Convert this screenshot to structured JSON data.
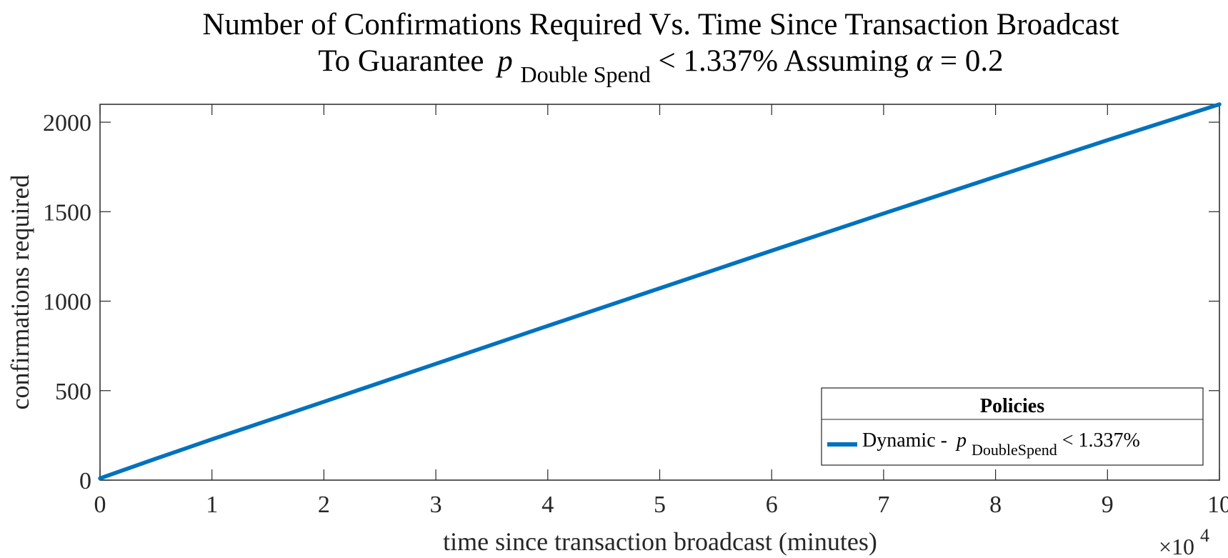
{
  "chart_data": {
    "type": "line",
    "title": {
      "line1": "Number of Confirmations Required Vs. Time Since Transaction Broadcast",
      "line2_prefix": "To Guarantee ",
      "line2_var": "p",
      "line2_sub": "Double Spend",
      "line2_suffix": " < 1.337% Assuming ",
      "line2_alpha": "α",
      "line2_end": " = 0.2"
    },
    "xlabel": "time since transaction broadcast (minutes)",
    "ylabel": "confirmations required",
    "x_exponent": {
      "prefix": "×10",
      "power": "4"
    },
    "xlim": [
      0,
      10
    ],
    "ylim": [
      0,
      2100
    ],
    "xticks": [
      0,
      1,
      2,
      3,
      4,
      5,
      6,
      7,
      8,
      9,
      10
    ],
    "yticks": [
      0,
      500,
      1000,
      1500,
      2000
    ],
    "grid": false,
    "legend": {
      "title": "Policies",
      "placement": "bottom-right",
      "entry_prefix": "Dynamic -  ",
      "entry_var": "p",
      "entry_sub": "DoubleSpend",
      "entry_suffix": " < 1.337%"
    },
    "series": [
      {
        "color": "#0072BD",
        "x": [
          0,
          0.5,
          1,
          2,
          3,
          4,
          5,
          6,
          7,
          8,
          9,
          10
        ],
        "y": [
          10,
          120,
          228,
          438,
          650,
          862,
          1072,
          1282,
          1490,
          1695,
          1900,
          2100
        ]
      }
    ]
  }
}
